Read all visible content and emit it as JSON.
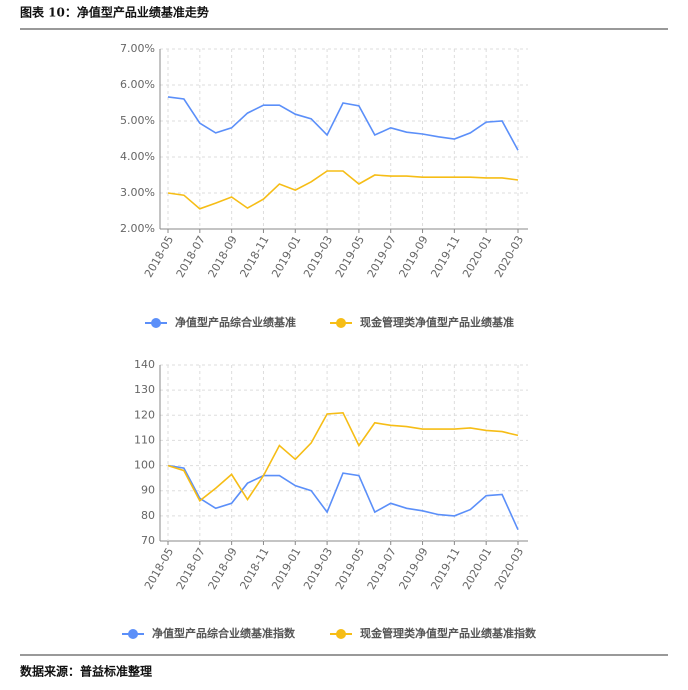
{
  "header": {
    "title": "图表 10：净值型产品业绩基准走势"
  },
  "footer": {
    "source": "数据来源：普益标准整理"
  },
  "chart_data": [
    {
      "type": "line",
      "categories": [
        "2018-05",
        null,
        "2018-07",
        null,
        "2018-09",
        null,
        "2018-11",
        null,
        "2019-01",
        null,
        "2019-03",
        null,
        "2019-05",
        null,
        "2019-07",
        null,
        "2019-09",
        null,
        "2019-11",
        null,
        "2020-01",
        null,
        "2020-03"
      ],
      "ylim": [
        2,
        7
      ],
      "yticks": [
        {
          "value": 2,
          "label": "2.00%"
        },
        {
          "value": 3,
          "label": "3.00%"
        },
        {
          "value": 4,
          "label": "4.00%"
        },
        {
          "value": 5,
          "label": "5.00%"
        },
        {
          "value": 6,
          "label": "6.00%"
        },
        {
          "value": 7,
          "label": "7.00%"
        }
      ],
      "grid": true,
      "series": [
        {
          "name": "净值型产品综合业绩基准",
          "color": "#5b8ff9",
          "values": [
            5.67,
            5.61,
            4.94,
            4.67,
            4.81,
            5.22,
            5.44,
            5.44,
            5.19,
            5.06,
            4.61,
            5.5,
            5.42,
            4.61,
            4.81,
            4.69,
            4.64,
            4.56,
            4.5,
            4.67,
            4.97,
            5.0,
            4.19
          ]
        },
        {
          "name": "现金管理类净值型产品业绩基准",
          "color": "#f6bd16",
          "values": [
            3.0,
            2.94,
            2.56,
            2.72,
            2.89,
            2.58,
            2.83,
            3.25,
            3.08,
            3.31,
            3.61,
            3.61,
            3.25,
            3.5,
            3.47,
            3.47,
            3.44,
            3.44,
            3.44,
            3.44,
            3.42,
            3.42,
            3.36
          ]
        }
      ]
    },
    {
      "type": "line",
      "categories": [
        "2018-05",
        null,
        "2018-07",
        null,
        "2018-09",
        null,
        "2018-11",
        null,
        "2019-01",
        null,
        "2019-03",
        null,
        "2019-05",
        null,
        "2019-07",
        null,
        "2019-09",
        null,
        "2019-11",
        null,
        "2020-01",
        null,
        "2020-03"
      ],
      "ylim": [
        70,
        140
      ],
      "yticks": [
        70,
        80,
        90,
        100,
        110,
        120,
        130,
        140
      ],
      "grid": true,
      "series": [
        {
          "name": "净值型产品综合业绩基准指数",
          "color": "#5b8ff9",
          "values": [
            100,
            99,
            87,
            83,
            85,
            93,
            96,
            96,
            92,
            90,
            81.5,
            97,
            96,
            81.5,
            85,
            83,
            82,
            80.5,
            80,
            82.5,
            88,
            88.5,
            74.5
          ]
        },
        {
          "name": "现金管理类净值型产品业绩基准指数",
          "color": "#f6bd16",
          "values": [
            100,
            98,
            86,
            91,
            96.5,
            86.5,
            96,
            108,
            102.5,
            109,
            120.5,
            121,
            108,
            117,
            116,
            115.5,
            114.5,
            114.5,
            114.5,
            115,
            114,
            113.5,
            112
          ]
        }
      ]
    }
  ]
}
